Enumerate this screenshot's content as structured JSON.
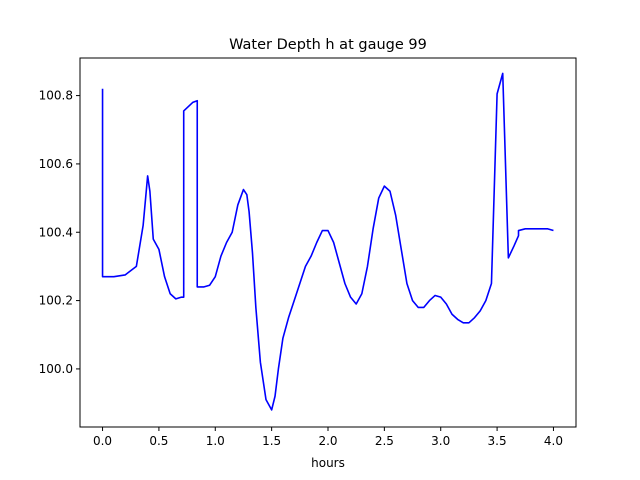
{
  "chart_data": {
    "type": "line",
    "title": "Water Depth h at gauge 99",
    "xlabel": "hours",
    "ylabel": "",
    "xlim": [
      -0.2,
      4.2
    ],
    "ylim": [
      99.83,
      100.91
    ],
    "grid": false,
    "xticks": [
      0.0,
      0.5,
      1.0,
      1.5,
      2.0,
      2.5,
      3.0,
      3.5,
      4.0
    ],
    "xtick_labels": [
      "0.0",
      "0.5",
      "1.0",
      "1.5",
      "2.0",
      "2.5",
      "3.0",
      "3.5",
      "4.0"
    ],
    "yticks": [
      100.0,
      100.2,
      100.4,
      100.6,
      100.8
    ],
    "ytick_labels": [
      "100.0",
      "100.2",
      "100.4",
      "100.6",
      "100.8"
    ],
    "series": [
      {
        "color": "#0000ff",
        "x": [
          0.0,
          0.0,
          0.1,
          0.2,
          0.3,
          0.36,
          0.4,
          0.42,
          0.45,
          0.5,
          0.55,
          0.6,
          0.65,
          0.7,
          0.72,
          0.72,
          0.8,
          0.84,
          0.84,
          0.9,
          0.95,
          1.0,
          1.05,
          1.1,
          1.15,
          1.2,
          1.25,
          1.28,
          1.3,
          1.33,
          1.36,
          1.4,
          1.45,
          1.5,
          1.53,
          1.56,
          1.6,
          1.65,
          1.7,
          1.75,
          1.8,
          1.85,
          1.9,
          1.95,
          2.0,
          2.05,
          2.1,
          2.15,
          2.2,
          2.25,
          2.3,
          2.35,
          2.4,
          2.45,
          2.5,
          2.55,
          2.6,
          2.65,
          2.7,
          2.75,
          2.8,
          2.85,
          2.9,
          2.95,
          3.0,
          3.05,
          3.1,
          3.15,
          3.2,
          3.25,
          3.3,
          3.35,
          3.4,
          3.45,
          3.5,
          3.55,
          3.6,
          3.65,
          3.69,
          3.69,
          3.75,
          3.75,
          3.8,
          3.85,
          3.9,
          3.95,
          4.0
        ],
        "y": [
          100.82,
          100.27,
          100.27,
          100.275,
          100.3,
          100.42,
          100.565,
          100.52,
          100.38,
          100.35,
          100.27,
          100.22,
          100.205,
          100.21,
          100.21,
          100.755,
          100.78,
          100.785,
          100.24,
          100.24,
          100.245,
          100.27,
          100.33,
          100.37,
          100.4,
          100.48,
          100.525,
          100.51,
          100.46,
          100.34,
          100.18,
          100.02,
          99.91,
          99.88,
          99.92,
          100.0,
          100.09,
          100.15,
          100.2,
          100.25,
          100.3,
          100.33,
          100.37,
          100.405,
          100.405,
          100.37,
          100.31,
          100.25,
          100.21,
          100.19,
          100.22,
          100.3,
          100.41,
          100.5,
          100.535,
          100.52,
          100.45,
          100.35,
          100.25,
          100.2,
          100.18,
          100.18,
          100.2,
          100.215,
          100.21,
          100.19,
          100.16,
          100.145,
          100.135,
          100.135,
          100.15,
          100.17,
          100.2,
          100.25,
          100.805,
          100.865,
          100.325,
          100.36,
          100.39,
          100.405,
          100.41,
          100.41,
          100.41,
          100.41,
          100.41,
          100.41,
          100.405
        ]
      }
    ]
  }
}
